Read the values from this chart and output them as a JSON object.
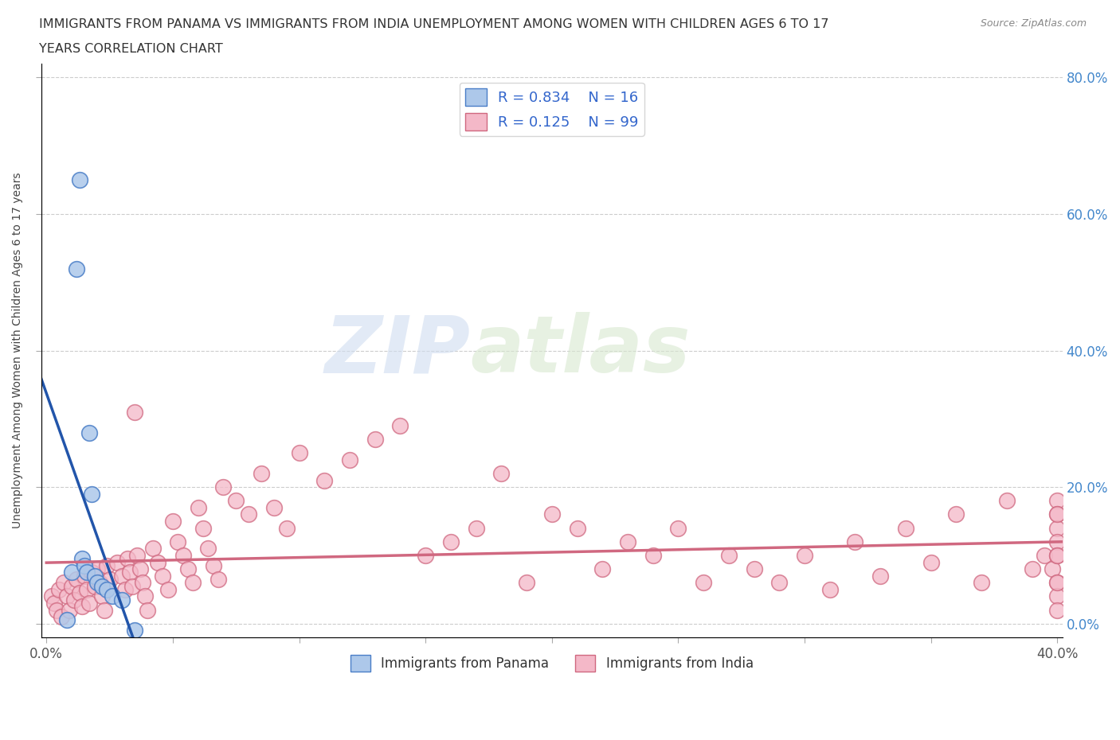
{
  "title_line1": "IMMIGRANTS FROM PANAMA VS IMMIGRANTS FROM INDIA UNEMPLOYMENT AMONG WOMEN WITH CHILDREN AGES 6 TO 17",
  "title_line2": "YEARS CORRELATION CHART",
  "source": "Source: ZipAtlas.com",
  "ylabel": "Unemployment Among Women with Children Ages 6 to 17 years",
  "xlim": [
    -0.002,
    0.402
  ],
  "ylim": [
    -0.02,
    0.82
  ],
  "xtick_positions": [
    0.0,
    0.05,
    0.1,
    0.15,
    0.2,
    0.25,
    0.3,
    0.35,
    0.4
  ],
  "xtick_labels": [
    "0.0%",
    "",
    "",
    "",
    "",
    "",
    "",
    "",
    "40.0%"
  ],
  "ytick_positions": [
    0.0,
    0.2,
    0.4,
    0.6,
    0.8
  ],
  "ytick_labels_right": [
    "0.0%",
    "20.0%",
    "40.0%",
    "60.0%",
    "80.0%"
  ],
  "panama_R": 0.834,
  "panama_N": 16,
  "india_R": 0.125,
  "india_N": 99,
  "panama_color": "#adc8ea",
  "panama_edge_color": "#4a7ec7",
  "panama_line_color": "#2255aa",
  "india_color": "#f4b8c8",
  "india_edge_color": "#d06880",
  "india_line_color": "#d06880",
  "watermark_zip": "ZIP",
  "watermark_atlas": "atlas",
  "panama_x": [
    0.008,
    0.01,
    0.012,
    0.013,
    0.014,
    0.015,
    0.016,
    0.017,
    0.018,
    0.019,
    0.02,
    0.022,
    0.024,
    0.026,
    0.03,
    0.035
  ],
  "panama_y": [
    0.005,
    0.075,
    0.52,
    0.65,
    0.095,
    0.085,
    0.075,
    0.28,
    0.19,
    0.07,
    0.06,
    0.055,
    0.05,
    0.04,
    0.035,
    -0.01
  ],
  "india_x": [
    0.002,
    0.003,
    0.004,
    0.005,
    0.006,
    0.007,
    0.008,
    0.009,
    0.01,
    0.011,
    0.012,
    0.013,
    0.014,
    0.015,
    0.016,
    0.017,
    0.018,
    0.019,
    0.02,
    0.021,
    0.022,
    0.023,
    0.024,
    0.025,
    0.028,
    0.03,
    0.031,
    0.032,
    0.033,
    0.034,
    0.035,
    0.036,
    0.037,
    0.038,
    0.039,
    0.04,
    0.042,
    0.044,
    0.046,
    0.048,
    0.05,
    0.052,
    0.054,
    0.056,
    0.058,
    0.06,
    0.062,
    0.064,
    0.066,
    0.068,
    0.07,
    0.075,
    0.08,
    0.085,
    0.09,
    0.095,
    0.1,
    0.11,
    0.12,
    0.13,
    0.14,
    0.15,
    0.16,
    0.17,
    0.18,
    0.19,
    0.2,
    0.21,
    0.22,
    0.23,
    0.24,
    0.25,
    0.26,
    0.27,
    0.28,
    0.29,
    0.3,
    0.31,
    0.32,
    0.33,
    0.34,
    0.35,
    0.36,
    0.37,
    0.38,
    0.39,
    0.395,
    0.398,
    0.4,
    0.4,
    0.4,
    0.4,
    0.4,
    0.4,
    0.4,
    0.4,
    0.4,
    0.4,
    0.4
  ],
  "india_y": [
    0.04,
    0.03,
    0.02,
    0.05,
    0.01,
    0.06,
    0.04,
    0.02,
    0.055,
    0.035,
    0.065,
    0.045,
    0.025,
    0.07,
    0.05,
    0.03,
    0.075,
    0.055,
    0.08,
    0.06,
    0.04,
    0.02,
    0.085,
    0.065,
    0.09,
    0.07,
    0.05,
    0.095,
    0.075,
    0.055,
    0.31,
    0.1,
    0.08,
    0.06,
    0.04,
    0.02,
    0.11,
    0.09,
    0.07,
    0.05,
    0.15,
    0.12,
    0.1,
    0.08,
    0.06,
    0.17,
    0.14,
    0.11,
    0.085,
    0.065,
    0.2,
    0.18,
    0.16,
    0.22,
    0.17,
    0.14,
    0.25,
    0.21,
    0.24,
    0.27,
    0.29,
    0.1,
    0.12,
    0.14,
    0.22,
    0.06,
    0.16,
    0.14,
    0.08,
    0.12,
    0.1,
    0.14,
    0.06,
    0.1,
    0.08,
    0.06,
    0.1,
    0.05,
    0.12,
    0.07,
    0.14,
    0.09,
    0.16,
    0.06,
    0.18,
    0.08,
    0.1,
    0.08,
    0.18,
    0.16,
    0.14,
    0.12,
    0.1,
    0.06,
    0.04,
    0.02,
    0.06,
    0.16,
    0.1
  ]
}
